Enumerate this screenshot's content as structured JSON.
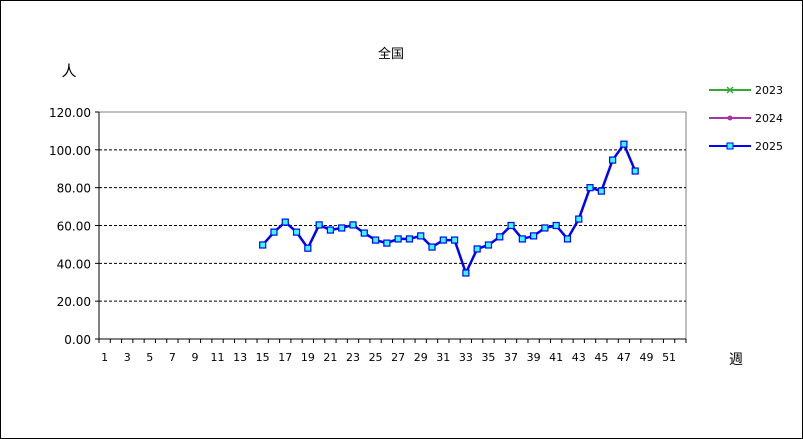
{
  "chart_data": {
    "type": "line",
    "title": "全国",
    "ylabel": "人",
    "xlabel": "週",
    "ylim": [
      0,
      120
    ],
    "yticks": [
      "0.00",
      "20.00",
      "40.00",
      "60.00",
      "80.00",
      "100.00",
      "120.00"
    ],
    "xticks": [
      1,
      3,
      5,
      7,
      9,
      11,
      13,
      15,
      17,
      19,
      21,
      23,
      25,
      27,
      29,
      31,
      33,
      35,
      37,
      39,
      41,
      43,
      45,
      47,
      49,
      51
    ],
    "x_categories": 52,
    "grid": "horizontal dashed",
    "legend_position": "right",
    "series": [
      {
        "name": "2023",
        "color": "#33aa33",
        "marker": "x",
        "x": [],
        "values": []
      },
      {
        "name": "2024",
        "color": "#aa33aa",
        "marker": "circle",
        "x": [],
        "values": []
      },
      {
        "name": "2025",
        "color": "#0000ff",
        "marker": "square",
        "marker_fill": "#33ffff",
        "x": [
          15,
          16,
          17,
          18,
          19,
          20,
          21,
          22,
          23,
          24,
          25,
          26,
          27,
          28,
          29,
          30,
          31,
          32,
          33,
          34,
          35,
          36,
          37,
          38,
          39,
          40,
          41,
          42,
          43,
          44,
          45,
          46,
          47,
          48
        ],
        "values": [
          49.7,
          56.5,
          61.8,
          56.5,
          48.0,
          60.3,
          57.6,
          58.7,
          60.3,
          56.0,
          52.3,
          50.7,
          52.9,
          52.9,
          54.5,
          48.6,
          52.3,
          52.3,
          34.9,
          47.6,
          49.7,
          54.0,
          60.0,
          52.9,
          54.5,
          58.7,
          60.0,
          52.9,
          63.4,
          80.0,
          78.2,
          94.6,
          103.0,
          88.8
        ]
      }
    ]
  }
}
